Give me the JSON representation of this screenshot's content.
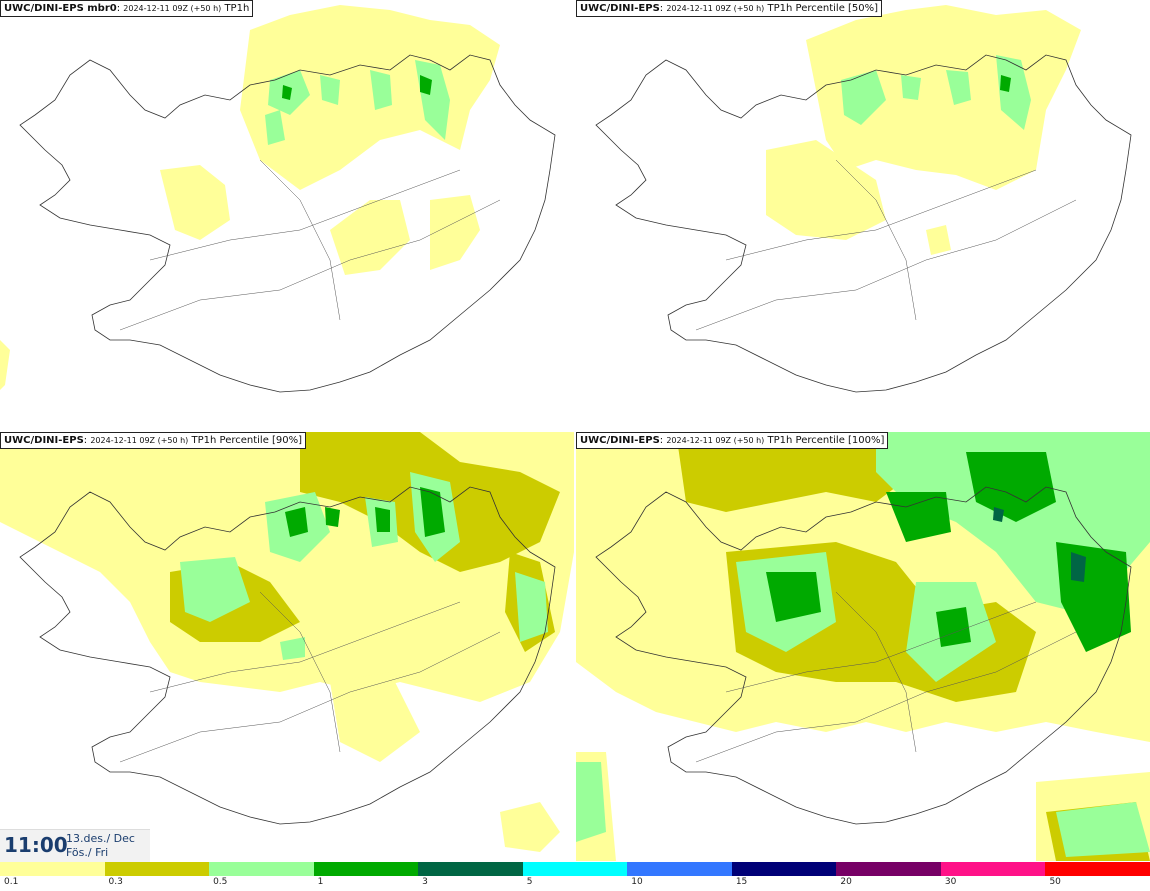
{
  "panels": [
    {
      "model": "UWC/DINI-EPS mbr0",
      "run": "2024-12-11 09Z (+50 h)",
      "field": "TP1h"
    },
    {
      "model": "UWC/DINI-EPS",
      "run": "2024-12-11 09Z (+50 h)",
      "field": "TP1h Percentile [50%]"
    },
    {
      "model": "UWC/DINI-EPS",
      "run": "2024-12-11 09Z (+50 h)",
      "field": "TP1h Percentile [90%]"
    },
    {
      "model": "UWC/DINI-EPS",
      "run": "2024-12-11 09Z (+50 h)",
      "field": "TP1h Percentile [100%]"
    }
  ],
  "valid_time": {
    "clock": "11:00",
    "date_line1": "13.des./ Dec",
    "date_line2": "Fös./ Fri"
  },
  "colorbar": {
    "labels": [
      "0.1",
      "0.3",
      "0.5",
      "1",
      "3",
      "5",
      "10",
      "15",
      "20",
      "30",
      "50"
    ],
    "colors": [
      "#ffff99",
      "#cccc00",
      "#99ff99",
      "#00aa00",
      "#006644",
      "#00ffff",
      "#3377ff",
      "#000077",
      "#770066",
      "#ff1188",
      "#ff0000"
    ]
  }
}
